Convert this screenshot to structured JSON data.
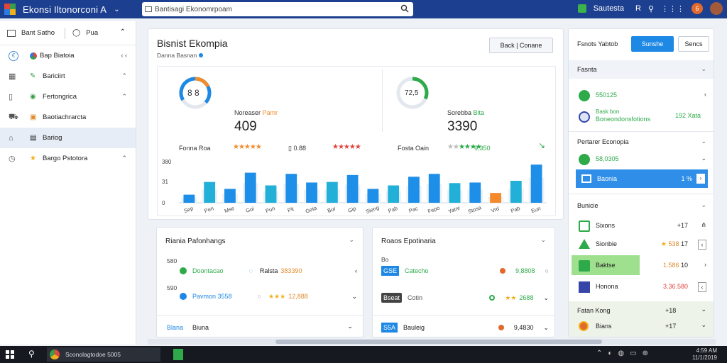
{
  "header": {
    "app_title": "Ekonsi Iltonorconi A",
    "search_placeholder": "Bantisagi Ekonomrpoam",
    "status_label": "Sautesta",
    "status_name": "R",
    "notif_count": "6"
  },
  "sidebar": {
    "top_label": "Bant Satho",
    "top_label2": "Pua",
    "items": [
      {
        "label": "Bap Biatoia",
        "badge": "‹ ‹"
      },
      {
        "label": "Bariciirt"
      },
      {
        "label": "Fertongrica"
      },
      {
        "label": "Baotiachrarcta"
      },
      {
        "label": "Bariog"
      },
      {
        "label": "Bargo Pstotora"
      }
    ]
  },
  "main": {
    "title": "Bisnist Ekompia",
    "subtitle": "Danna Basnan",
    "button": "Back | Conane",
    "kpi1": {
      "ring_value": "8 8",
      "ring_label": "Fonna Roa",
      "title": "Noreaser",
      "tag": "Pamr",
      "value": "409",
      "count": "0.88",
      "stars": "★★★★★"
    },
    "kpi2": {
      "ring_value": "72,5",
      "ring_label": "Fosta Oain",
      "title": "Sorebba",
      "tag": "Bita",
      "value": "3390",
      "sub": "9,350",
      "stars": "★★★★"
    }
  },
  "chart_data": {
    "type": "bar",
    "ylim": [
      0,
      380
    ],
    "yticks": [
      "380",
      "31",
      "0"
    ],
    "categories": [
      "Sep",
      "Pen",
      "Mse",
      "Gui",
      "Pun",
      "Pit",
      "Geta",
      "Bur",
      "Gip",
      "Sieng",
      "Pab",
      "Pac",
      "Fepo",
      "Yatnr",
      "Stosa",
      "Vrd",
      "Pab",
      "Eun"
    ],
    "series": [
      {
        "values": [
          70,
          180,
          120,
          260,
          150,
          250,
          175,
          180,
          240,
          120,
          150,
          225,
          250,
          170,
          175,
          85,
          190,
          330
        ]
      }
    ],
    "highlight_index": 15,
    "xlabels": [
      "Sep",
      "Pen",
      "Mse",
      "Gui",
      "Pun",
      "Pit",
      "Geta",
      "Bur",
      "Gip",
      "Sieng",
      "Pab",
      "Pac",
      "Fepo",
      "Yatnr",
      "Stosa",
      "Vrd",
      "Pab",
      "Eun"
    ]
  },
  "panel_left": {
    "title": "Riania Pafonhangs",
    "ylab1": "580",
    "ylab2": "590",
    "rows": [
      {
        "name": "Doontacao",
        "price": "Ralsta",
        "value": "383390"
      },
      {
        "name": "Pavmon 3558",
        "price": "",
        "value": "12,888"
      }
    ],
    "footer_a": "Blana",
    "footer_b": "Biuna"
  },
  "panel_right": {
    "title": "Roaos Epotinaria",
    "rows": [
      {
        "tag": "GSE",
        "name": "Catecho",
        "value": "9,8808"
      },
      {
        "tag": "Bseat",
        "name": "Cotin",
        "value": "2688"
      },
      {
        "tag": "S5A",
        "name": "Bauleig",
        "value": "9,4830"
      }
    ]
  },
  "right_panel": {
    "header": "Fsnots Yabtob",
    "btn_primary": "Sunshe",
    "btn_secondary": "Sencs",
    "sections": [
      {
        "title": "Fasnta"
      },
      {
        "title": "Pertarer Econopia"
      },
      {
        "title": "Bunicie"
      }
    ],
    "rows_a": [
      {
        "name": "550125",
        "count": "‹"
      },
      {
        "name": "Boneondonsfotions",
        "count": "192 Xata"
      }
    ],
    "rows_b": [
      {
        "name": "58,0305"
      },
      {
        "name": "Baonia",
        "count": "1 %"
      }
    ],
    "rows_c": [
      {
        "name": "Sixons",
        "count": "+17"
      },
      {
        "name": "Sionbie",
        "value": "538",
        "count": "17"
      },
      {
        "name": "Baktse",
        "value": "1.586",
        "count": "10"
      },
      {
        "name": "Honona",
        "value": "3.36.580"
      }
    ],
    "foot_title": "Fatan Kong",
    "foot_count": "+18",
    "foot_row": "Bians",
    "foot_row_count": "+17"
  },
  "taskbar": {
    "app_label": "Sconolagtodoe 5005",
    "clock_time": "4:59 AM",
    "clock_date": "11/1/2019"
  }
}
